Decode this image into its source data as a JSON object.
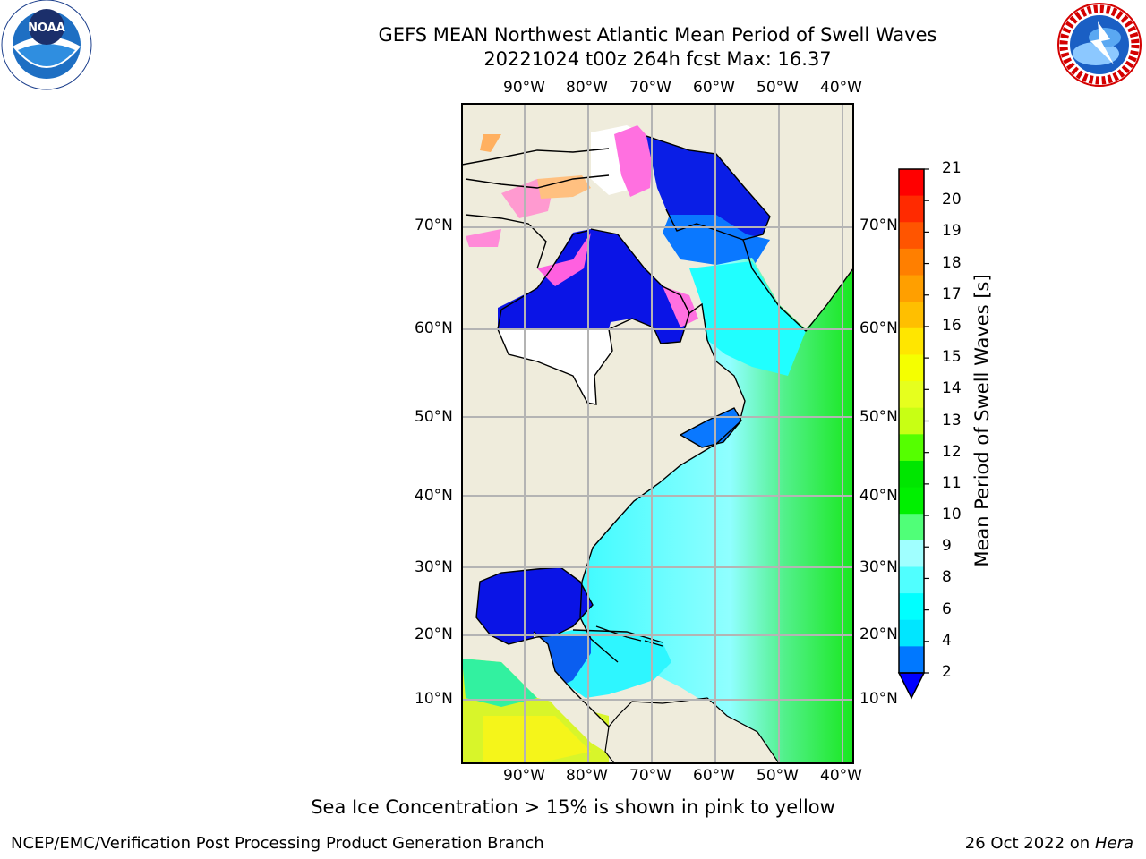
{
  "header": {
    "title": "GEFS MEAN Northwest Atlantic Mean Period of Swell Waves",
    "subtitle": "20221024 t00z 264h fcst   Max: 16.37"
  },
  "logos": {
    "noaa_text": "NOAA",
    "noaa_ring": "NATIONAL OCEANIC AND ATMOSPHERIC ADMINISTRATION · U.S. DEPARTMENT OF COMMERCE",
    "nws_ring": "NATIONAL WEATHER SERVICE"
  },
  "map": {
    "lon_labels": [
      "90°W",
      "80°W",
      "70°W",
      "60°W",
      "50°W",
      "40°W"
    ],
    "lat_labels": [
      "70°N",
      "60°N",
      "50°N",
      "40°N",
      "30°N",
      "20°N",
      "10°N"
    ],
    "colors": {
      "land": "#efecdc",
      "ice_white": "#ffffff",
      "ocean_blue": "#0a14e6",
      "grid": "#b4b4b4"
    }
  },
  "colorbar": {
    "label": "Mean Period of Swell Waves [s]",
    "ticks": [
      "21",
      "20",
      "19",
      "18",
      "17",
      "16",
      "15",
      "14",
      "13",
      "12",
      "11",
      "10",
      "9",
      "8",
      "6",
      "4",
      "2"
    ],
    "colors_top_to_bottom": [
      "#ff0000",
      "#ff2a00",
      "#ff5500",
      "#ff7f00",
      "#ff9f00",
      "#ffbf00",
      "#ffe600",
      "#f5ff00",
      "#e6ff1e",
      "#c8ff14",
      "#55ff00",
      "#00e600",
      "#00f000",
      "#50ff78",
      "#a0ffff",
      "#50ffff",
      "#00ffff",
      "#00e6ff",
      "#0078ff"
    ],
    "under_color": "#0000ff"
  },
  "notes": {
    "ice": "Sea Ice Concentration > 15% is shown in pink to yellow",
    "producer": "NCEP/EMC/Verification Post Processing Product Generation Branch",
    "date": "26 Oct 2022 on",
    "machine": "Hera"
  }
}
